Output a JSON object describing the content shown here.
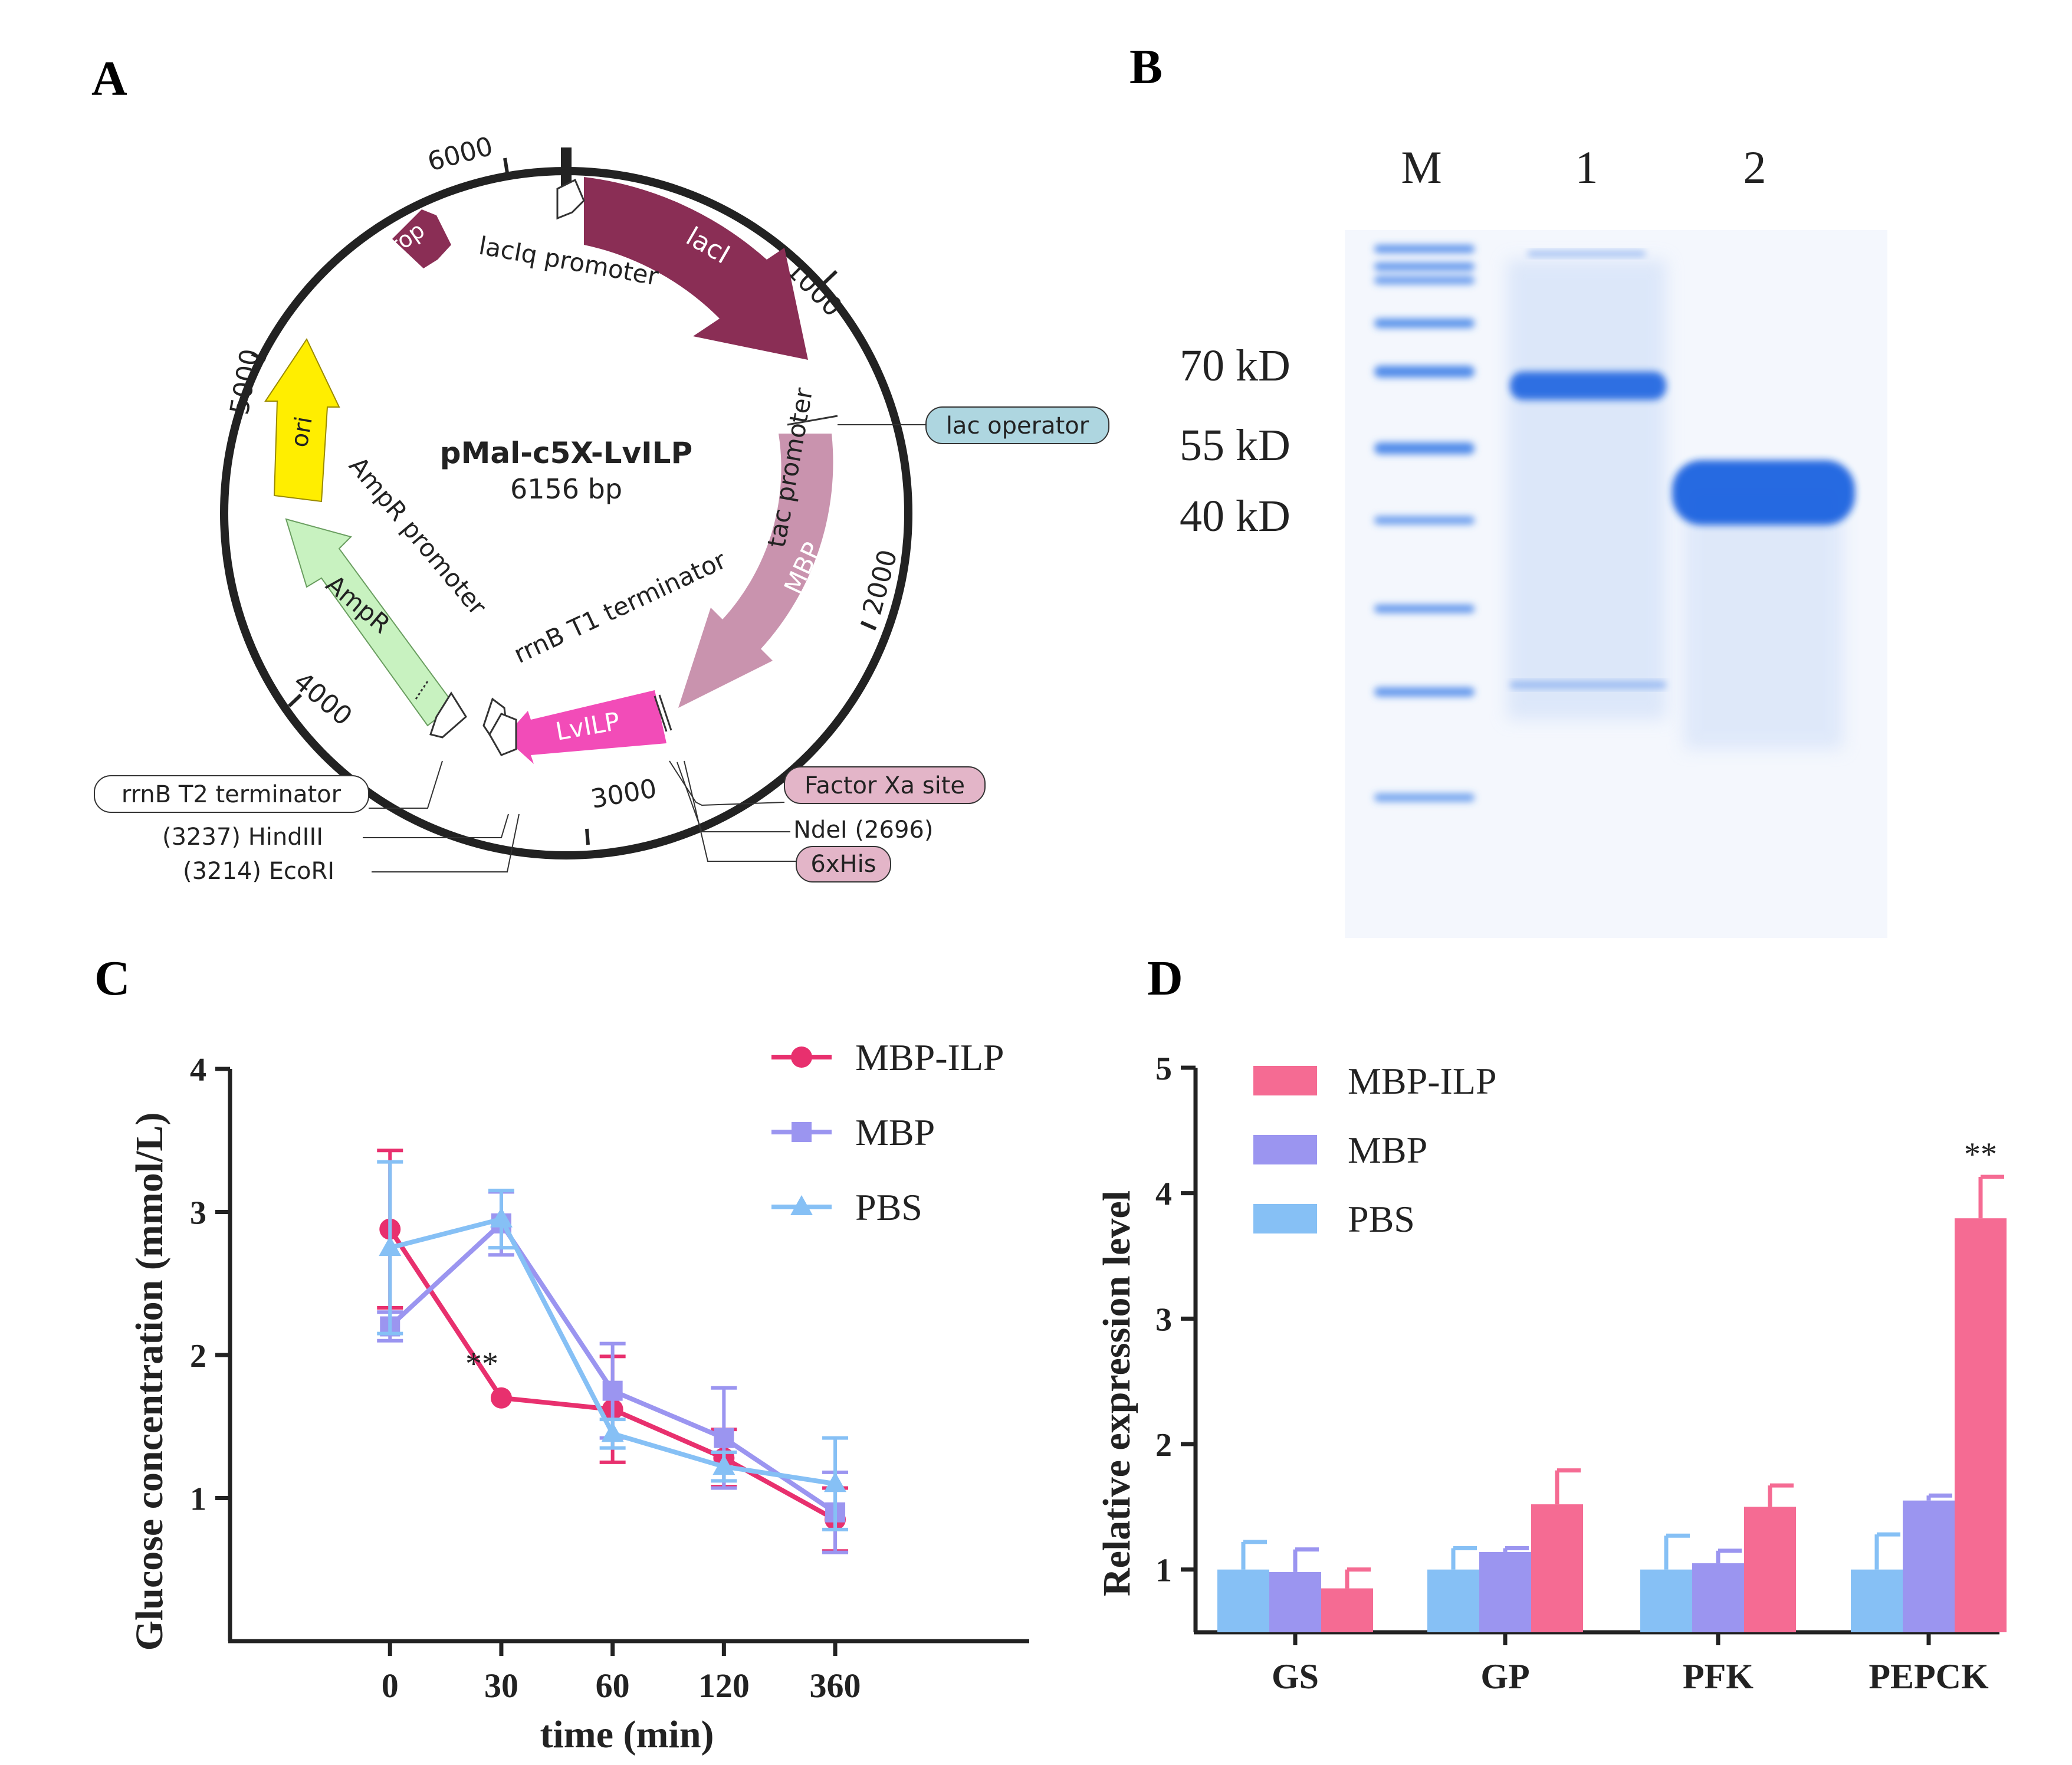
{
  "panels": {
    "a": {
      "letter": "A",
      "plasmid": {
        "name": "pMal-c5X-LvILP",
        "size": "6156 bp",
        "ticks": [
          "1000",
          "2000",
          "3000",
          "4000",
          "5000",
          "6000"
        ],
        "features": {
          "laci": "lacI",
          "laciq_promoter": "lacIq promoter",
          "rop": "rop",
          "ori": "ori",
          "ampr": "AmpR",
          "ampr_promoter": "AmpR promoter",
          "tac_promoter": "tac promoter",
          "mbp": "MBP",
          "lvilp": "LvILP",
          "rrnb_t1": "rrnB T1 terminator"
        },
        "callouts": {
          "lac_operator": "lac operator",
          "factor_xa": "Factor Xa site",
          "ndei": "NdeI (2696)",
          "his": "6xHis",
          "rrnb_t2": "rrnB T2 terminator",
          "hindiii": "(3237) HindIII",
          "ecori": "(3214) EcoRI"
        },
        "colors": {
          "laci": "#8a2e55",
          "rop": "#8a2e55",
          "ori": "#ffee00",
          "ampr": "#c8f2c0",
          "mbp": "#c993ae",
          "lvilp": "#f24cb8",
          "lac_operator_box": "#aed6e0",
          "pink_box": "#e3b5c8"
        }
      }
    },
    "b": {
      "letter": "B",
      "lanes": [
        "M",
        "1",
        "2"
      ],
      "markers": [
        "70 kD",
        "55 kD",
        "40 kD"
      ],
      "gel_color": "#1a64e0"
    },
    "c": {
      "letter": "C"
    },
    "d": {
      "letter": "D"
    }
  },
  "chart_data": [
    {
      "type": "line",
      "panel": "C",
      "xlabel": "time (min)",
      "ylabel": "Glucose concentration (mmol/L)",
      "categories": [
        "0",
        "30",
        "60",
        "120",
        "360"
      ],
      "ylim": [
        0,
        4
      ],
      "yticks": [
        "1",
        "2",
        "3",
        "4"
      ],
      "legend_position": "top-right",
      "series": [
        {
          "name": "MBP-ILP",
          "color": "#e8306e",
          "marker": "circle",
          "values": [
            2.88,
            1.7,
            1.62,
            1.28,
            0.85
          ],
          "errors": [
            0.55,
            0,
            0.37,
            0.2,
            0.22
          ]
        },
        {
          "name": "MBP",
          "color": "#9b95f0",
          "marker": "square",
          "values": [
            2.2,
            2.92,
            1.75,
            1.42,
            0.9
          ],
          "errors": [
            0.1,
            0.22,
            0.33,
            0.35,
            0.28
          ]
        },
        {
          "name": "PBS",
          "color": "#86c0f5",
          "marker": "triangle",
          "values": [
            2.75,
            2.95,
            1.45,
            1.22,
            1.1
          ],
          "errors": [
            0.6,
            0.2,
            0.1,
            0.1,
            0.32
          ]
        }
      ],
      "annotations": [
        {
          "x": "30",
          "text": "**"
        }
      ]
    },
    {
      "type": "bar",
      "panel": "D",
      "xlabel": "",
      "ylabel": "Relative expression level",
      "categories": [
        "GS",
        "GP",
        "PFK",
        "PEPCK"
      ],
      "ylim": [
        0.5,
        5
      ],
      "yticks": [
        "1",
        "2",
        "3",
        "4",
        "5"
      ],
      "legend_position": "top-left",
      "series": [
        {
          "name": "PBS",
          "color": "#86c0f5",
          "values": [
            1.0,
            1.0,
            1.0,
            1.0
          ],
          "errors": [
            0.22,
            0.17,
            0.27,
            0.28
          ]
        },
        {
          "name": "MBP",
          "color": "#9b95f0",
          "values": [
            0.98,
            1.14,
            1.05,
            1.55
          ],
          "errors": [
            0.18,
            0.03,
            0.1,
            0.04
          ]
        },
        {
          "name": "MBP-ILP",
          "color": "#f56b93",
          "values": [
            0.85,
            1.52,
            1.5,
            3.8
          ],
          "errors": [
            0.15,
            0.27,
            0.17,
            0.33
          ]
        }
      ],
      "legend_order": [
        "MBP-ILP",
        "MBP",
        "PBS"
      ],
      "annotations": [
        {
          "category": "PEPCK",
          "text": "**"
        }
      ]
    }
  ]
}
